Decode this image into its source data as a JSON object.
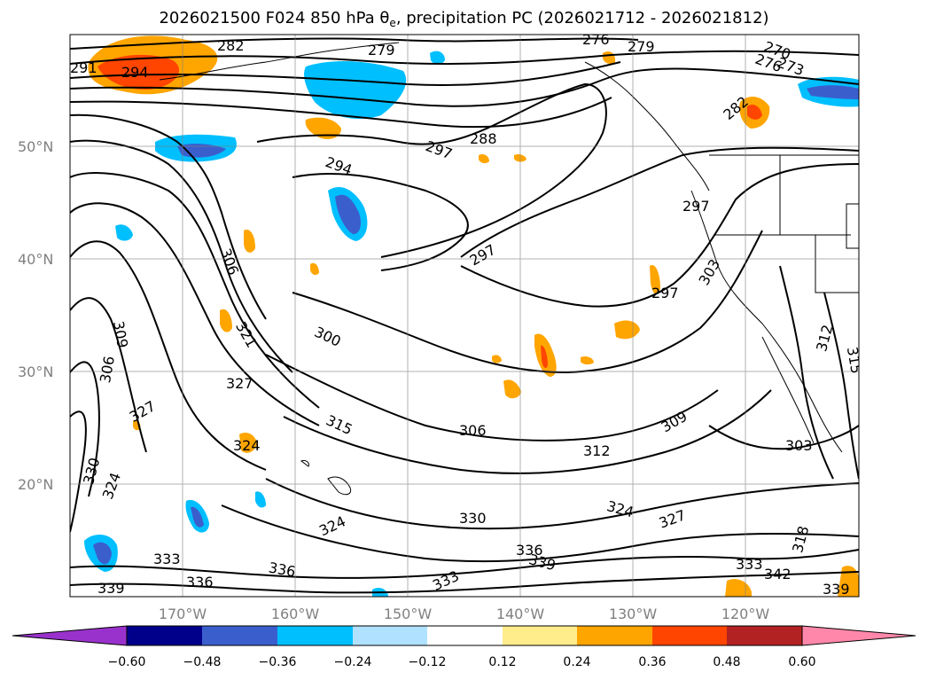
{
  "title": {
    "prefix": "2026021500 F024 850 hPa ",
    "theta": "θ",
    "theta_sub": "e",
    "suffix": ", precipitation PC (2026021712 - 2026021812)"
  },
  "latitude_labels": [
    "50°N",
    "40°N",
    "30°N",
    "20°N"
  ],
  "longitude_labels": [
    "170°W",
    "160°W",
    "150°W",
    "140°W",
    "130°W",
    "120°W"
  ],
  "contour_labels": [
    "282",
    "279",
    "276",
    "279",
    "270",
    "273",
    "276",
    "282",
    "291",
    "294",
    "288",
    "297",
    "294",
    "297",
    "297",
    "303",
    "297",
    "300",
    "309",
    "306",
    "327",
    "321",
    "312",
    "315",
    "327",
    "306",
    "309",
    "315",
    "306",
    "324",
    "312",
    "303",
    "330",
    "324",
    "330",
    "324",
    "327",
    "324",
    "318",
    "333",
    "336",
    "336",
    "333",
    "339",
    "336",
    "339",
    "333",
    "342",
    "339"
  ],
  "colorbar": {
    "ticks": [
      "−0.60",
      "−0.48",
      "−0.36",
      "−0.24",
      "−0.12",
      "0.12",
      "0.24",
      "0.36",
      "0.48",
      "0.60"
    ],
    "colors": [
      "#9932cc",
      "#00008b",
      "#3a5fcd",
      "#00bfff",
      "#b0e2ff",
      "#ffffff",
      "#ffec8b",
      "#ffa500",
      "#ff4500",
      "#b22222",
      "#ff88aa"
    ],
    "extend": "both"
  },
  "map_features": {
    "projection": "cylindrical",
    "gridlines": true,
    "land_outlines": [
      "north-america-west-coast",
      "alaska",
      "aleutians",
      "hawaii",
      "baja-california"
    ],
    "precip_shading": "positive warm colors, negative cool colors",
    "icon_names": [
      "colorbar-arrow-left",
      "colorbar-arrow-right"
    ]
  }
}
